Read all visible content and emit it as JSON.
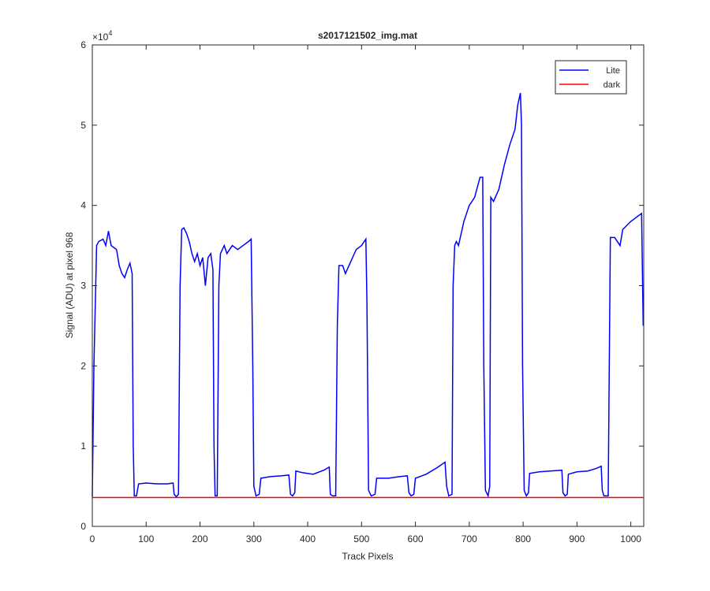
{
  "chart_data": {
    "type": "line",
    "title": "s2017121502_img.mat",
    "xlabel": "Track Pixels",
    "ylabel": "Signal (ADU) at pixel 968",
    "y_multiplier": {
      "base": "×10",
      "exponent": "4"
    },
    "xlim": [
      0,
      1024
    ],
    "ylim": [
      0,
      60000
    ],
    "xticks": [
      0,
      100,
      200,
      300,
      400,
      500,
      600,
      700,
      800,
      900,
      1000
    ],
    "yticks": [
      0,
      {
        "value": 10000,
        "label": "1"
      },
      {
        "value": 20000,
        "label": "2"
      },
      {
        "value": 30000,
        "label": "3"
      },
      {
        "value": 40000,
        "label": "4"
      },
      {
        "value": 50000,
        "label": "5"
      },
      {
        "value": 60000,
        "label": "6"
      }
    ],
    "grid": false,
    "legend": "top-right",
    "series": [
      {
        "name": "Lite",
        "color": "#0000ff",
        "x": [
          0,
          3,
          8,
          12,
          20,
          25,
          30,
          35,
          45,
          50,
          55,
          60,
          65,
          70,
          74,
          76,
          78,
          82,
          86,
          100,
          120,
          140,
          150,
          152,
          156,
          160,
          163,
          166,
          170,
          175,
          180,
          185,
          190,
          195,
          200,
          205,
          210,
          215,
          220,
          224,
          226,
          228,
          232,
          235,
          238,
          245,
          250,
          260,
          270,
          280,
          290,
          295,
          298,
          300,
          304,
          310,
          313,
          330,
          350,
          365,
          368,
          372,
          376,
          378,
          390,
          410,
          430,
          440,
          442,
          446,
          452,
          455,
          458,
          465,
          470,
          480,
          490,
          500,
          508,
          510,
          513,
          518,
          525,
          528,
          550,
          570,
          585,
          588,
          592,
          597,
          600,
          620,
          640,
          655,
          658,
          662,
          668,
          670,
          673,
          676,
          680,
          690,
          700,
          710,
          720,
          725,
          727,
          730,
          735,
          738,
          740,
          745,
          755,
          765,
          775,
          785,
          790,
          795,
          797,
          799,
          802,
          806,
          810,
          812,
          830,
          850,
          872,
          874,
          878,
          882,
          884,
          900,
          920,
          935,
          945,
          947,
          950,
          958,
          960,
          962,
          970,
          980,
          985,
          1000,
          1010,
          1020,
          1023
        ],
        "values": [
          3700,
          20000,
          35000,
          35500,
          35800,
          35000,
          36800,
          35000,
          34500,
          32500,
          31500,
          31000,
          32000,
          32800,
          31500,
          10000,
          3800,
          3800,
          5300,
          5400,
          5300,
          5300,
          5400,
          4000,
          3700,
          4000,
          30000,
          37000,
          37200,
          36500,
          35500,
          34000,
          33000,
          34000,
          32500,
          33500,
          30000,
          33500,
          34000,
          32000,
          10000,
          3800,
          3800,
          30000,
          34000,
          35000,
          34000,
          35000,
          34500,
          35000,
          35500,
          35800,
          20000,
          5000,
          3800,
          4000,
          6000,
          6200,
          6300,
          6400,
          4000,
          3800,
          4200,
          6900,
          6700,
          6500,
          7000,
          7400,
          4000,
          3800,
          3800,
          25000,
          32500,
          32500,
          31500,
          33000,
          34500,
          35000,
          35800,
          28000,
          4500,
          3800,
          4000,
          6000,
          6000,
          6200,
          6300,
          4200,
          3800,
          4000,
          6000,
          6500,
          7300,
          8000,
          5000,
          3800,
          4000,
          30000,
          35000,
          35500,
          35000,
          38000,
          40000,
          41000,
          43500,
          43500,
          20000,
          4500,
          3800,
          5000,
          41000,
          40500,
          42000,
          45000,
          47500,
          49500,
          52500,
          54000,
          50000,
          20000,
          4500,
          3800,
          4200,
          6600,
          6800,
          6900,
          7000,
          4200,
          3800,
          4000,
          6500,
          6800,
          6900,
          7200,
          7500,
          4500,
          3800,
          3800,
          20000,
          36000,
          36000,
          35000,
          37000,
          38000,
          38500,
          39000,
          25000
        ]
      },
      {
        "name": "dark",
        "color": "#ff0000",
        "x": [
          0,
          1023
        ],
        "values": [
          3600,
          3600
        ]
      }
    ]
  }
}
